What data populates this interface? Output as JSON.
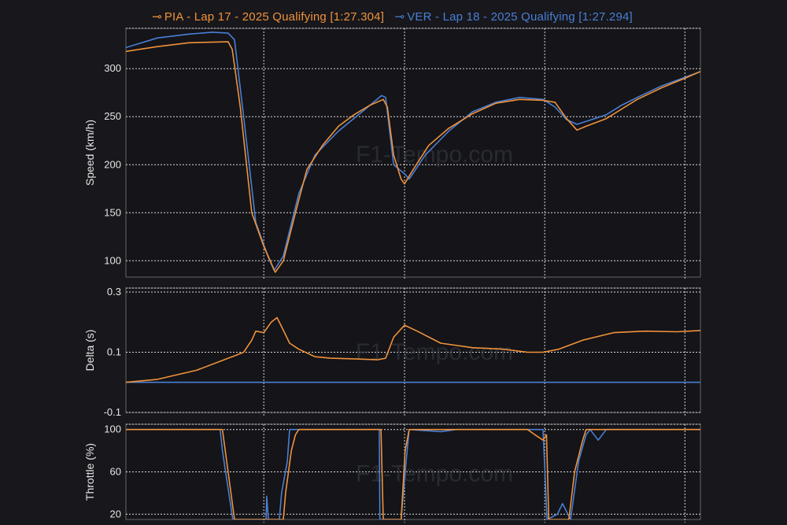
{
  "legend": [
    {
      "label": "PIA - Lap 17 - 2025 Qualifying [1:27.304]",
      "color": "#f0923a"
    },
    {
      "label": "VER - Lap 18 - 2025 Qualifying [1:27.294]",
      "color": "#4a7fd4"
    }
  ],
  "watermark": "F1-Tempo.com",
  "chart_data": [
    {
      "type": "line",
      "ylabel": "Speed (km/h)",
      "yticks": [
        100,
        150,
        200,
        250,
        300
      ],
      "ylim": [
        83,
        342
      ],
      "xlim": [
        0,
        100
      ],
      "x_gridlines": [
        24,
        48.5,
        72.9,
        97.3
      ],
      "grid": true,
      "series": [
        {
          "name": "PIA - Lap 17 - 2025 Qualifying [1:27.304]",
          "color": "#f0923a",
          "x": [
            0,
            5.5,
            11,
            17.8,
            18.5,
            19.9,
            21.9,
            24,
            26,
            27.4,
            29.5,
            31.5,
            34.2,
            37,
            39.7,
            42.5,
            44.8,
            45.5,
            46.6,
            47.9,
            48.5,
            50,
            52.7,
            56.2,
            60.3,
            64.4,
            68.5,
            72.6,
            74.7,
            76.7,
            78.5,
            80.1,
            83.6,
            86.3,
            89,
            93.2,
            97.3,
            100
          ],
          "y": [
            318,
            323,
            327,
            328,
            320,
            260,
            150,
            115,
            88,
            100,
            150,
            195,
            220,
            240,
            252,
            262,
            268,
            260,
            210,
            185,
            180,
            195,
            220,
            238,
            253,
            264,
            268,
            267,
            265,
            248,
            236,
            240,
            248,
            258,
            268,
            280,
            290,
            297
          ]
        },
        {
          "name": "VER - Lap 18 - 2025 Qualifying [1:27.294]",
          "color": "#4a7fd4",
          "x": [
            0,
            5.5,
            11,
            15.1,
            17.8,
            18.9,
            20.5,
            22.6,
            24.7,
            25.8,
            27.4,
            30.1,
            32.9,
            37,
            41.1,
            44.5,
            45.2,
            46.6,
            48.6,
            49.3,
            52.1,
            56.2,
            60.3,
            64.4,
            68.5,
            72.6,
            74.7,
            76.7,
            78.5,
            80.1,
            83.6,
            86.3,
            89,
            93.2,
            97.3,
            100
          ],
          "y": [
            322,
            332,
            336,
            338,
            337,
            330,
            250,
            140,
            105,
            90,
            105,
            170,
            210,
            235,
            255,
            272,
            270,
            200,
            190,
            185,
            210,
            235,
            255,
            265,
            270,
            268,
            260,
            247,
            242,
            245,
            252,
            262,
            270,
            282,
            291,
            297
          ]
        }
      ]
    },
    {
      "type": "line",
      "ylabel": "Delta (s)",
      "yticks": [
        -0.1,
        0.1,
        0.3
      ],
      "ylim": [
        -0.1,
        0.313
      ],
      "xlim": [
        0,
        100
      ],
      "x_gridlines": [
        24,
        48.5,
        72.9,
        97.3
      ],
      "grid": true,
      "series": [
        {
          "name": "PIA - Lap 17 - 2025 Qualifying [1:27.304]",
          "color": "#f0923a",
          "x": [
            0,
            5.5,
            12.3,
            17.8,
            19.2,
            20.5,
            21.9,
            22.6,
            24,
            25.3,
            26.3,
            27.1,
            28.5,
            30.1,
            32.9,
            35.6,
            39.7,
            43.8,
            45.2,
            46.6,
            48.5,
            50.7,
            54.8,
            60.3,
            65.8,
            69.9,
            72.6,
            75.3,
            79.5,
            84.9,
            90.4,
            95.9,
            100
          ],
          "y": [
            0.0,
            0.01,
            0.04,
            0.08,
            0.09,
            0.1,
            0.14,
            0.17,
            0.165,
            0.2,
            0.215,
            0.185,
            0.13,
            0.11,
            0.085,
            0.08,
            0.078,
            0.075,
            0.08,
            0.15,
            0.19,
            0.17,
            0.13,
            0.115,
            0.11,
            0.1,
            0.1,
            0.11,
            0.14,
            0.165,
            0.17,
            0.168,
            0.172
          ]
        },
        {
          "name": "VER - Lap 18 - 2025 Qualifying [1:27.294]",
          "color": "#4a7fd4",
          "x": [
            0,
            100
          ],
          "y": [
            0,
            0
          ]
        }
      ]
    },
    {
      "type": "line",
      "ylabel": "Throttle (%)",
      "yticks": [
        20,
        60,
        100
      ],
      "ylim": [
        15,
        105
      ],
      "xlim": [
        0,
        100
      ],
      "x_gridlines": [
        24,
        48.5,
        72.9,
        97.3
      ],
      "grid": true,
      "series": [
        {
          "name": "PIA - Lap 17 - 2025 Qualifying [1:27.304]",
          "color": "#f0923a",
          "x": [
            0,
            16.8,
            18.9,
            27.4,
            27.8,
            28.8,
            29.5,
            30.1,
            44.4,
            44.8,
            47.9,
            48.6,
            49.3,
            54.8,
            57.5,
            69.9,
            71.2,
            72.6,
            73.2,
            73.6,
            77.1,
            78.1,
            79.5,
            80.1,
            100
          ],
          "y": [
            100,
            100,
            15,
            15,
            40,
            80,
            95,
            100,
            100,
            15,
            15,
            80,
            100,
            100,
            100,
            100,
            95,
            90,
            95,
            15,
            15,
            60,
            90,
            100,
            100
          ]
        },
        {
          "name": "VER - Lap 18 - 2025 Qualifying [1:27.294]",
          "color": "#4a7fd4",
          "x": [
            0,
            16.4,
            16.8,
            18.6,
            24.4,
            24.5,
            24.8,
            26.7,
            27.1,
            28.1,
            28.5,
            44.1,
            44.2,
            47.9,
            48.6,
            49.3,
            54.8,
            57.5,
            72.6,
            73.3,
            75.1,
            76,
            77.4,
            78.8,
            80.1,
            80.8,
            82.2,
            83.6,
            100
          ],
          "y": [
            100,
            100,
            80,
            15,
            15,
            37,
            15,
            15,
            40,
            70,
            100,
            100,
            15,
            15,
            60,
            100,
            98,
            100,
            100,
            15,
            20,
            30,
            15,
            70,
            95,
            100,
            90,
            100,
            100
          ]
        }
      ]
    }
  ]
}
